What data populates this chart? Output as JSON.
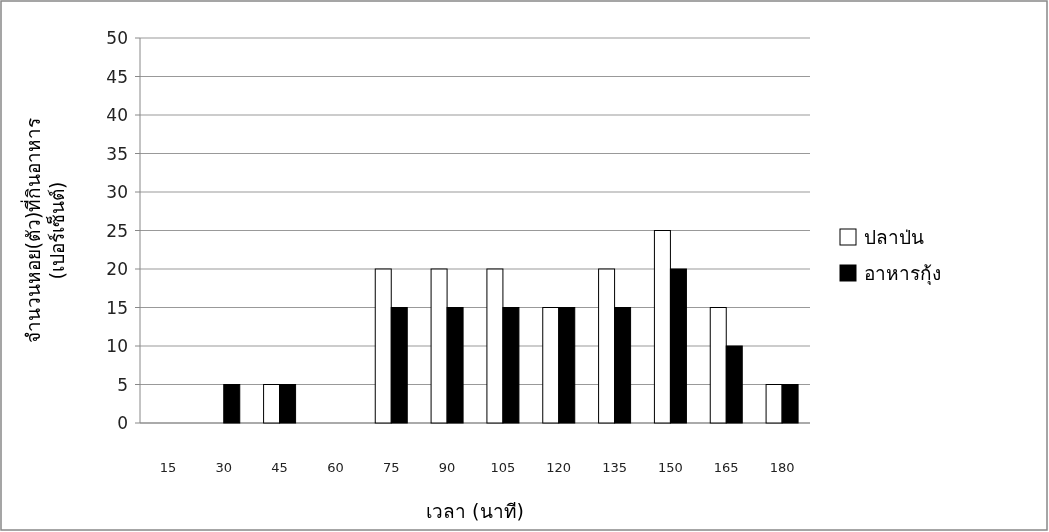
{
  "chart_data": {
    "type": "bar",
    "categories": [
      "15",
      "30",
      "45",
      "60",
      "75",
      "90",
      "105",
      "120",
      "135",
      "150",
      "165",
      "180"
    ],
    "series": [
      {
        "name": "ปลาป่น",
        "color": "#ffffff",
        "values": [
          0,
          0,
          5,
          0,
          20,
          20,
          20,
          15,
          20,
          25,
          15,
          5
        ]
      },
      {
        "name": "อาหารกุ้ง",
        "color": "#000000",
        "values": [
          0,
          5,
          5,
          0,
          15,
          15,
          15,
          15,
          15,
          20,
          10,
          5
        ]
      }
    ],
    "xlabel": "เวลา (นาที)",
    "ylabel": "จำนวนหอย(ตัว)ที่กินอาหาร\n(เปอร์เซ็นต์)",
    "ylim": [
      0,
      50
    ],
    "yticks": [
      0,
      5,
      10,
      15,
      20,
      25,
      30,
      35,
      40,
      45,
      50
    ],
    "grid": "y",
    "legend": "right"
  }
}
